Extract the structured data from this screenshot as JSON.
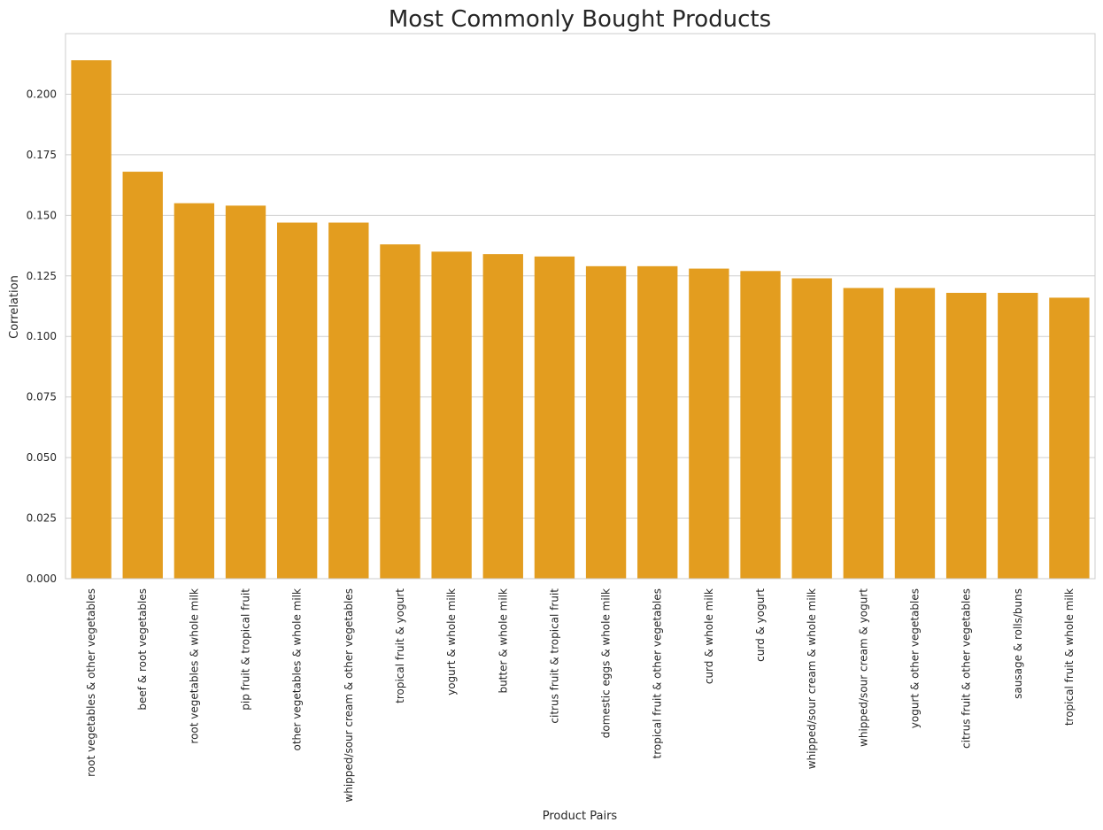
{
  "chart_data": {
    "type": "bar",
    "title": "Most Commonly Bought Products",
    "xlabel": "Product Pairs",
    "ylabel": "Correlation",
    "ylim": [
      0,
      0.225
    ],
    "yticks": [
      "0.000",
      "0.025",
      "0.050",
      "0.075",
      "0.100",
      "0.125",
      "0.150",
      "0.175",
      "0.200"
    ],
    "grid": "horizontal",
    "bar_color": "#e39d1f",
    "categories": [
      "root vegetables & other vegetables",
      "beef & root vegetables",
      "root vegetables & whole milk",
      "pip fruit & tropical fruit",
      "other vegetables & whole milk",
      "whipped/sour cream & other vegetables",
      "tropical fruit & yogurt",
      "yogurt & whole milk",
      "butter & whole milk",
      "citrus fruit & tropical fruit",
      "domestic eggs & whole milk",
      "tropical fruit & other vegetables",
      "curd & whole milk",
      "curd & yogurt",
      "whipped/sour cream & whole milk",
      "whipped/sour cream & yogurt",
      "yogurt & other vegetables",
      "citrus fruit & other vegetables",
      "sausage & rolls/buns",
      "tropical fruit & whole milk"
    ],
    "values": [
      0.214,
      0.168,
      0.155,
      0.154,
      0.147,
      0.147,
      0.138,
      0.135,
      0.134,
      0.133,
      0.129,
      0.129,
      0.128,
      0.127,
      0.124,
      0.12,
      0.12,
      0.118,
      0.118,
      0.116
    ]
  }
}
